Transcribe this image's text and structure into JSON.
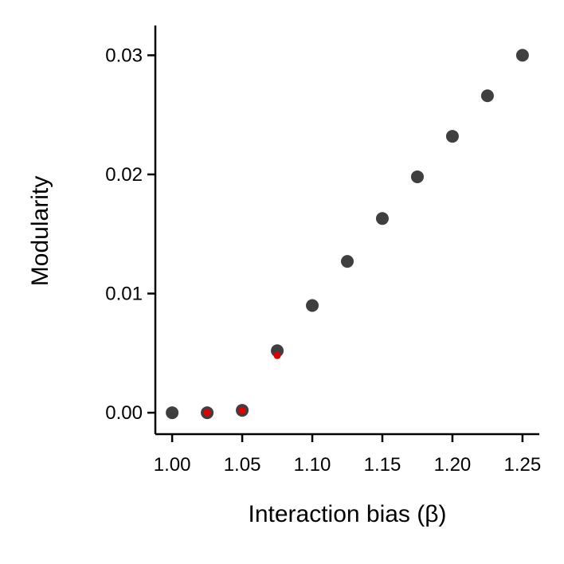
{
  "chart_data": {
    "type": "scatter",
    "title": "",
    "xlabel": "Interaction bias (β)",
    "ylabel": "Modularity",
    "xlim": [
      0.988,
      1.262
    ],
    "ylim": [
      -0.0018,
      0.0325
    ],
    "xticks": [
      "1.00",
      "1.05",
      "1.10",
      "1.15",
      "1.20",
      "1.25"
    ],
    "yticks": [
      "0.00",
      "0.01",
      "0.02",
      "0.03"
    ],
    "grid": false,
    "legend": "none",
    "series": [
      {
        "color": "#3f3f3f",
        "points": [
          {
            "x": 1.0,
            "y": 0.0
          },
          {
            "x": 1.025,
            "y": 0.0
          },
          {
            "x": 1.05,
            "y": 0.0002
          },
          {
            "x": 1.075,
            "y": 0.0052
          },
          {
            "x": 1.1,
            "y": 0.009
          },
          {
            "x": 1.125,
            "y": 0.0127
          },
          {
            "x": 1.15,
            "y": 0.0163
          },
          {
            "x": 1.175,
            "y": 0.0198
          },
          {
            "x": 1.2,
            "y": 0.0232
          },
          {
            "x": 1.225,
            "y": 0.0266
          },
          {
            "x": 1.25,
            "y": 0.03
          }
        ]
      },
      {
        "color": "#e00000",
        "points": [
          {
            "x": 1.025,
            "y": 0.0
          },
          {
            "x": 1.05,
            "y": 0.0002
          },
          {
            "x": 1.075,
            "y": 0.0048
          }
        ]
      }
    ]
  }
}
